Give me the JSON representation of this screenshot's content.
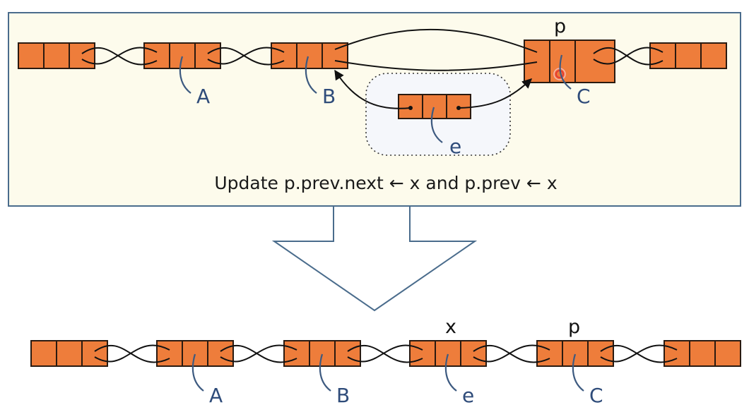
{
  "top_panel": {
    "pointer_label": "p",
    "node_labels": [
      "A",
      "B",
      "C"
    ],
    "new_node_label": "e",
    "caption": "Update p.prev.next ← x and p.prev ← x"
  },
  "bottom_list": {
    "pointer_labels": [
      "x",
      "p"
    ],
    "node_labels": [
      "A",
      "B",
      "e",
      "C"
    ]
  },
  "colors": {
    "node_fill": "#ee7d3b",
    "panel_background": "#fdfbec",
    "panel_border": "#4a6c8c",
    "label_blue": "#2f4c7a",
    "cursor": "#e53935"
  }
}
